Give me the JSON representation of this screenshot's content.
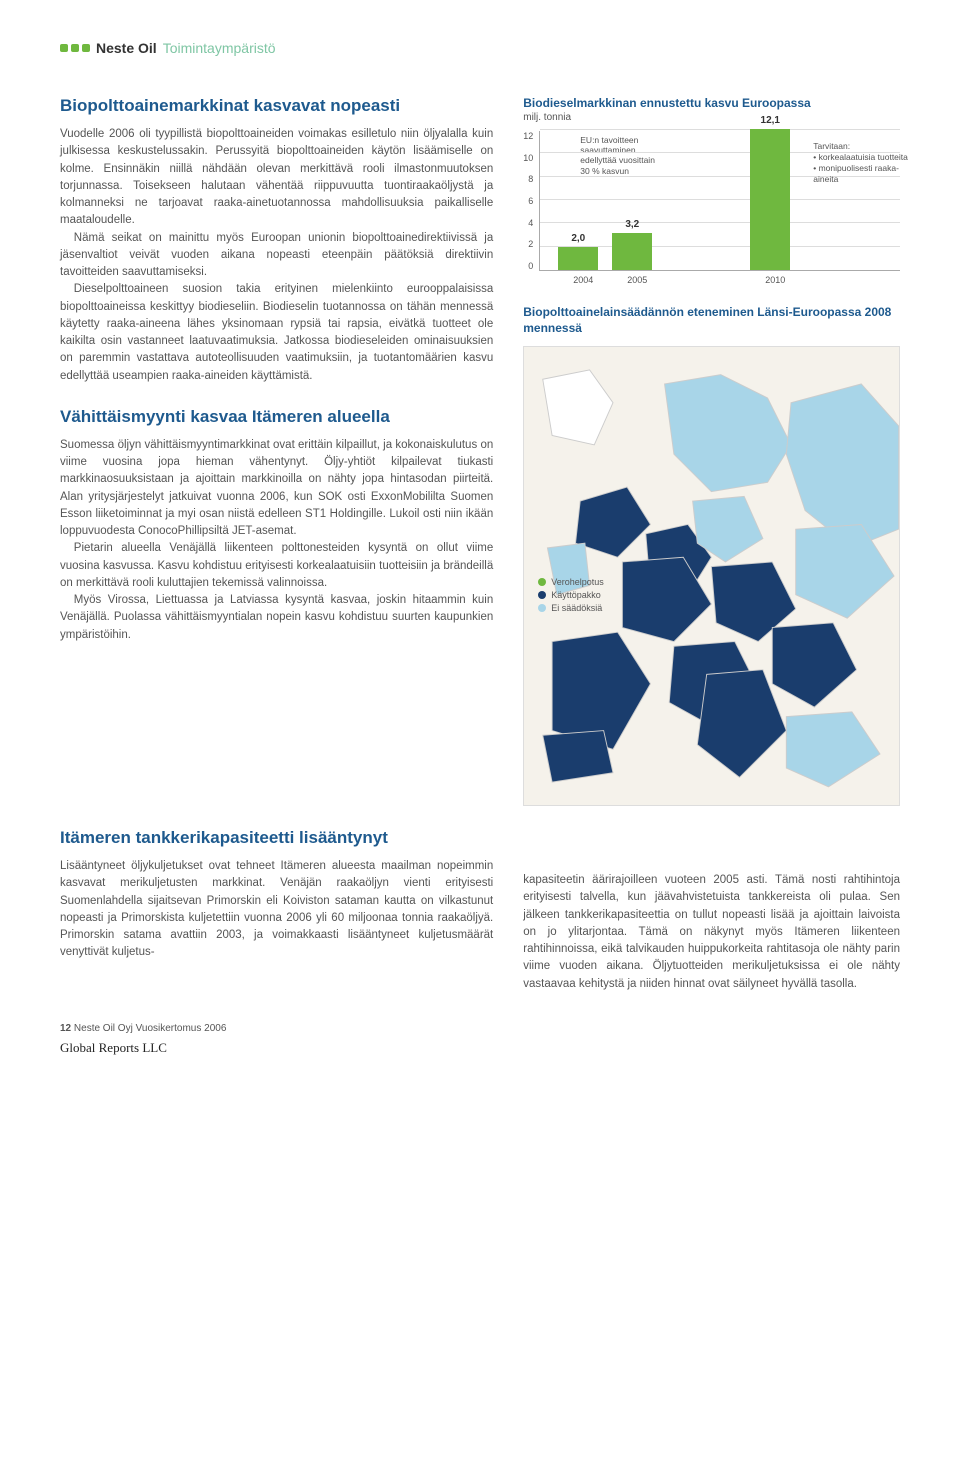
{
  "header": {
    "company": "Neste Oil",
    "section": "Toimintaympäristö"
  },
  "left": {
    "h1": "Biopolttoainemarkkinat kasvavat nopeasti",
    "p1": "Vuodelle 2006 oli tyypillistä biopolttoaineiden voimakas esilletulo niin öljyalalla kuin julkisessa keskustelussakin. Perussyitä biopolttoaineiden käytön lisäämiselle on kolme. Ensinnäkin niillä nähdään olevan merkittävä rooli ilmastonmuutoksen torjunnassa. Toisekseen halutaan vähentää riippuvuutta tuontiraakaöljystä ja kolmanneksi ne tarjoavat raaka-ainetuotannossa mahdollisuuksia paikalliselle maataloudelle.",
    "p2": "Nämä seikat on mainittu myös Euroopan unionin biopolttoainedirektiivissä ja jäsenvaltiot veivät vuoden aikana nopeasti eteenpäin päätöksiä direktiivin tavoitteiden saavuttamiseksi.",
    "p3": "Dieselpolttoaineen suosion takia erityinen mielenkiinto eurooppalaisissa biopolttoaineissa keskittyy biodieseliin. Biodieselin tuotannossa on tähän mennessä käytetty raaka-aineena lähes yksinomaan rypsiä tai rapsia, eivätkä tuotteet ole kaikilta osin vastanneet laatuvaatimuksia. Jatkossa biodieseleiden ominaisuuksien on paremmin vastattava autoteollisuuden vaatimuksiin, ja tuotantomäärien kasvu edellyttää useampien raaka-aineiden käyttämistä.",
    "h2": "Vähittäismyynti kasvaa Itämeren alueella",
    "p4": "Suomessa öljyn vähittäismyyntimarkkinat ovat erittäin kilpaillut, ja kokonaiskulutus on viime vuosina jopa hieman vähentynyt. Öljy-yhtiöt kilpailevat tiukasti markkinaosuuksistaan ja ajoittain markkinoilla on nähty jopa hintasodan piirteitä. Alan yritysjärjestelyt jatkuivat vuonna 2006, kun SOK osti ExxonMobililta Suomen Esson liiketoiminnat ja myi osan niistä edelleen ST1 Holdingille. Lukoil osti niin ikään loppuvuodesta ConocoPhillipsiltä JET-asemat.",
    "p5": "Pietarin alueella Venäjällä liikenteen polttonesteiden kysyntä on ollut viime vuosina kasvussa. Kasvu kohdistuu erityisesti korkealaatuisiin tuotteisiin ja brändeillä on merkittävä rooli kuluttajien tekemissä valinnoissa.",
    "p6": "Myös Virossa, Liettuassa ja Latviassa kysyntä kasvaa, joskin hitaammin kuin Venäjällä. Puolassa vähittäismyyntialan nopein kasvu kohdistuu suurten kaupunkien ympäristöihin.",
    "h3": "Itämeren tankkerikapasiteetti lisääntynyt",
    "p7": "Lisääntyneet öljykuljetukset ovat tehneet Itämeren alueesta maailman nopeimmin kasvavat merikuljetusten markkinat. Venäjän raakaöljyn vienti erityisesti Suomenlahdella sijaitsevan Primorskin eli Koiviston sataman kautta on vilkastunut nopeasti ja Primorskista kuljetettiin vuonna 2006 yli 60 miljoonaa tonnia raakaöljyä. Primorskin satama avattiin 2003, ja voimakkaasti lisääntyneet kuljetusmäärät venyttivät kuljetus-"
  },
  "chart": {
    "title": "Biodieselmarkkinan ennustettu kasvu Euroopassa",
    "subtitle": "milj. tonnia",
    "ymax": 12,
    "ytick_step": 2,
    "yticks": [
      "12",
      "10",
      "8",
      "6",
      "4",
      "2",
      "0"
    ],
    "categories": [
      "2004",
      "2005",
      "2010"
    ],
    "values": [
      2.0,
      3.2,
      12.1
    ],
    "labels": [
      "2,0",
      "3,2",
      "12,1"
    ],
    "bar_color": "#6fb83f",
    "grid_color": "#dddddd",
    "annotation": "EU:n tavoitteen saavuttaminen edellyttää vuosittain 30 % kasvun",
    "req_title": "Tarvitaan:",
    "req_items": [
      "korkealaatuisia tuotteita",
      "monipuolisesti raaka-aineita"
    ]
  },
  "map": {
    "title": "Biopolttoainelainsäädännön eteneminen Länsi-Euroopassa 2008 mennessä",
    "legend": [
      {
        "label": "Verohelpotus",
        "color": "#6fb83f"
      },
      {
        "label": "Käyttöpakko",
        "color": "#1a3d6d"
      },
      {
        "label": "Ei säädöksiä",
        "color": "#a8d5e8"
      }
    ],
    "bg": "#f5f2eb",
    "land": "#ffffff",
    "dark": "#1a3d6d",
    "light": "#a8d5e8"
  },
  "right_bottom": {
    "p1": "kapasiteetin äärirajoilleen vuoteen 2005 asti. Tämä nosti rahtihintoja erityisesti talvella, kun jäävahvistetuista tankkereista oli pulaa. Sen jälkeen tankkerikapasiteettia on tullut nopeasti lisää ja ajoittain laivoista on jo ylitarjontaa. Tämä on näkynyt myös Itämeren liikenteen rahtihinnoissa, eikä talvikauden huippukorkeita rahtitasoja ole nähty parin viime vuoden aikana. Öljytuotteiden merikuljetuksissa ei ole nähty vastaavaa kehitystä ja niiden hinnat ovat säilyneet hyvällä tasolla."
  },
  "footer": {
    "page": "12",
    "text": "Neste Oil Oyj Vuosikertomus 2006",
    "global": "Global Reports LLC"
  }
}
